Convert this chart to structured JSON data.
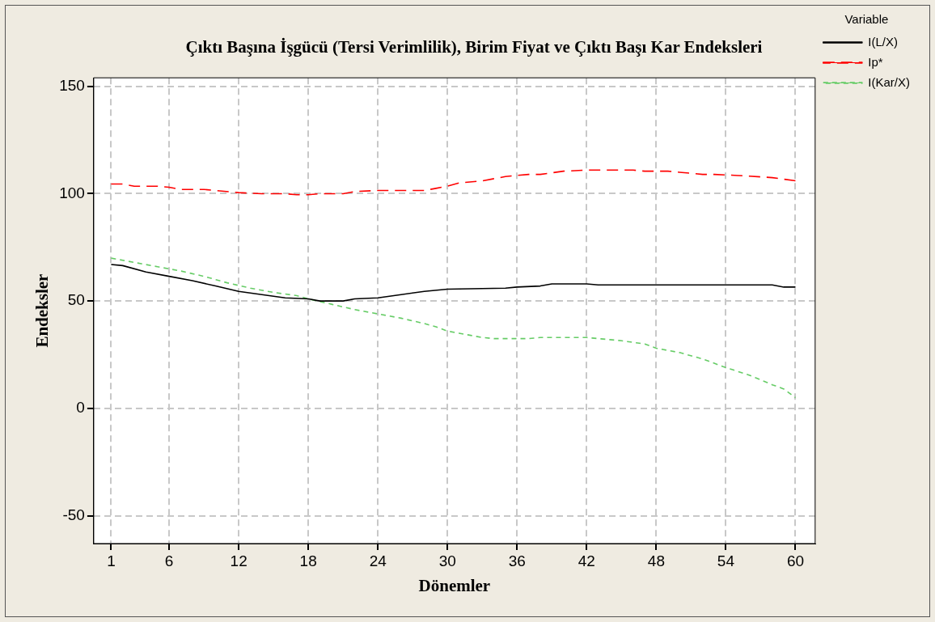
{
  "chart_data": {
    "type": "line",
    "title": "Çıktı Başına İşgücü (Tersi Verimlilik), Birim Fiyat ve Çıktı Başı Kar Endeksleri",
    "xlabel": "Dönemler",
    "ylabel": "Endeksler",
    "legend_title": "Variable",
    "legend": "right",
    "grid": true,
    "marker": "none",
    "xlim": [
      -0.5,
      61.7
    ],
    "xticks": [
      1,
      6,
      12,
      18,
      24,
      30,
      36,
      42,
      48,
      54,
      60
    ],
    "ylim": [
      -63,
      154
    ],
    "yticks": [
      -50,
      0,
      50,
      100,
      150
    ],
    "series": [
      {
        "name": "I(L/X)",
        "color": "#000000",
        "line_style": "solid",
        "x": [
          1,
          2,
          4,
          6,
          8,
          10,
          12,
          14,
          16,
          18,
          19,
          21,
          22,
          24,
          26,
          28,
          30,
          35,
          36,
          38,
          39,
          42,
          43,
          58,
          59,
          60
        ],
        "values": [
          67,
          66.5,
          63.5,
          61.5,
          59.5,
          57,
          54.5,
          53,
          51.5,
          51,
          50,
          50,
          51,
          51.5,
          53,
          54.5,
          55.5,
          56,
          56.5,
          57,
          58,
          58,
          57.5,
          57.5,
          56.5,
          56.5
        ]
      },
      {
        "name": "Ip*",
        "color": "#ff0000",
        "line_style": "dashed",
        "x": [
          1,
          2,
          3,
          5,
          6,
          7,
          9,
          10,
          12,
          14,
          16,
          17,
          18,
          19,
          21,
          22,
          24,
          28,
          29,
          30,
          31,
          33,
          35,
          37,
          38,
          40,
          42,
          46,
          47,
          49,
          50,
          52,
          53,
          55,
          58,
          60
        ],
        "values": [
          104.5,
          104.5,
          103.5,
          103.5,
          103,
          102,
          102,
          101.5,
          100.5,
          100,
          100,
          99.5,
          99.5,
          100,
          100,
          101,
          101.5,
          101.5,
          102.5,
          103.5,
          105,
          106,
          108,
          109,
          109,
          110.5,
          111,
          111,
          110.5,
          110.5,
          110,
          109,
          109,
          108.5,
          107.5,
          106
        ]
      },
      {
        "name": "I(Kar/X)",
        "color": "#66cc66",
        "line_style": "dotted",
        "x": [
          1,
          3,
          5,
          7,
          9,
          11,
          13,
          15,
          17,
          18,
          20,
          22,
          24,
          26,
          28,
          29,
          30,
          31,
          32,
          33,
          34,
          37,
          38,
          42,
          43,
          45,
          47,
          48,
          50,
          52,
          54,
          56,
          58,
          59,
          60
        ],
        "values": [
          70,
          68,
          66,
          64,
          61.5,
          58.5,
          56,
          54,
          52.5,
          51,
          48.5,
          46,
          44,
          42,
          39.5,
          38,
          36,
          35,
          34,
          33,
          32.5,
          32.5,
          33,
          33,
          32.5,
          31.5,
          30,
          28,
          26,
          23,
          19,
          15.5,
          11,
          9,
          5
        ]
      }
    ]
  }
}
